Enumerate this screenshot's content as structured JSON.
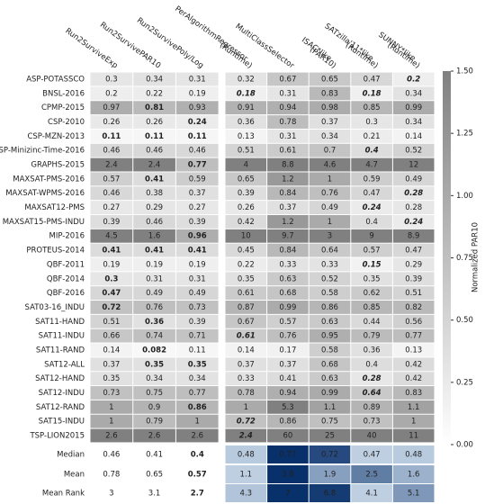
{
  "chart_data": {
    "type": "heatmap",
    "colorbar_label": "Normalized PAR10",
    "clim": [
      0,
      1.5
    ],
    "colorbar_ticks": [
      {
        "value": 0,
        "label": "0.00"
      },
      {
        "value": 0.25,
        "label": "0.25"
      },
      {
        "value": 0.5,
        "label": "0.50"
      },
      {
        "value": 0.75,
        "label": "0.75"
      },
      {
        "value": 1,
        "label": "1.00"
      },
      {
        "value": 1.25,
        "label": "1.25"
      },
      {
        "value": 1.5,
        "label": "1.50"
      }
    ],
    "columns": [
      [
        "Run2SurviveExp"
      ],
      [
        "Run2SurvivePAR10"
      ],
      [
        "Run2SurvivePoly/Log"
      ],
      [
        "PerAlgorithmRegressor",
        "(Runtime)"
      ],
      [
        "MultiClassSelector"
      ],
      [
        "ISAC*like",
        "(PAR10)"
      ],
      [
        "SATzilla'11*like",
        "(Runtime)"
      ],
      [
        "SUNNY*like",
        "(Runtime)"
      ]
    ],
    "rows": [
      {
        "name": "ASP-POTASSCO",
        "values": [
          0.3,
          0.34,
          0.31,
          0.32,
          0.67,
          0.65,
          0.47,
          0.2
        ],
        "bold": [
          7
        ]
      },
      {
        "name": "BNSL-2016",
        "values": [
          0.2,
          0.22,
          0.19,
          0.18,
          0.31,
          0.83,
          0.18,
          0.34
        ],
        "bold": [
          3,
          6
        ]
      },
      {
        "name": "CPMP-2015",
        "values": [
          0.97,
          0.81,
          0.93,
          0.91,
          0.94,
          0.98,
          0.85,
          0.99
        ],
        "bold": [
          1
        ]
      },
      {
        "name": "CSP-2010",
        "values": [
          0.26,
          0.26,
          0.24,
          0.36,
          0.78,
          0.37,
          0.3,
          0.34
        ],
        "bold": [
          2
        ]
      },
      {
        "name": "CSP-MZN-2013",
        "values": [
          0.11,
          0.11,
          0.11,
          0.13,
          0.31,
          0.34,
          0.21,
          0.14
        ],
        "bold": [
          0,
          1,
          2
        ]
      },
      {
        "name": "CSP-Minizinc-Time-2016",
        "values": [
          0.46,
          0.46,
          0.46,
          0.51,
          0.61,
          0.7,
          0.4,
          0.52
        ],
        "bold": [
          6
        ]
      },
      {
        "name": "GRAPHS-2015",
        "values": [
          2.4,
          2.4,
          0.77,
          4,
          8.8,
          4.6,
          4.7,
          12
        ],
        "bold": [
          2
        ]
      },
      {
        "name": "MAXSAT-PMS-2016",
        "values": [
          0.57,
          0.41,
          0.59,
          0.65,
          1.2,
          1,
          0.59,
          0.49
        ],
        "bold": [
          1
        ]
      },
      {
        "name": "MAXSAT-WPMS-2016",
        "values": [
          0.46,
          0.38,
          0.37,
          0.39,
          0.84,
          0.76,
          0.47,
          0.28
        ],
        "bold": [
          7
        ]
      },
      {
        "name": "MAXSAT12-PMS",
        "values": [
          0.27,
          0.29,
          0.27,
          0.26,
          0.37,
          0.49,
          0.24,
          0.28
        ],
        "bold": [
          6
        ]
      },
      {
        "name": "MAXSAT15-PMS-INDU",
        "values": [
          0.39,
          0.46,
          0.39,
          0.42,
          1.2,
          1,
          0.4,
          0.24
        ],
        "bold": [
          7
        ]
      },
      {
        "name": "MIP-2016",
        "values": [
          4.5,
          1.6,
          0.96,
          10,
          9.7,
          3,
          9,
          8.9
        ],
        "bold": [
          2
        ]
      },
      {
        "name": "PROTEUS-2014",
        "values": [
          0.41,
          0.41,
          0.41,
          0.45,
          0.84,
          0.64,
          0.57,
          0.47
        ],
        "bold": [
          0,
          1,
          2
        ]
      },
      {
        "name": "QBF-2011",
        "values": [
          0.19,
          0.19,
          0.19,
          0.22,
          0.33,
          0.33,
          0.15,
          0.29
        ],
        "bold": [
          6
        ]
      },
      {
        "name": "QBF-2014",
        "values": [
          0.3,
          0.31,
          0.31,
          0.35,
          0.63,
          0.52,
          0.35,
          0.39
        ],
        "bold": [
          0
        ]
      },
      {
        "name": "QBF-2016",
        "values": [
          0.47,
          0.49,
          0.49,
          0.61,
          0.68,
          0.58,
          0.62,
          0.51
        ],
        "bold": [
          0
        ]
      },
      {
        "name": "SAT03-16_INDU",
        "values": [
          0.72,
          0.76,
          0.73,
          0.87,
          0.99,
          0.86,
          0.85,
          0.82
        ],
        "bold": [
          0
        ]
      },
      {
        "name": "SAT11-HAND",
        "values": [
          0.51,
          0.36,
          0.39,
          0.67,
          0.57,
          0.63,
          0.44,
          0.56
        ],
        "bold": [
          1
        ]
      },
      {
        "name": "SAT11-INDU",
        "values": [
          0.66,
          0.74,
          0.71,
          0.61,
          0.76,
          0.95,
          0.79,
          0.77
        ],
        "bold": [
          3
        ]
      },
      {
        "name": "SAT11-RAND",
        "values": [
          0.14,
          0.082,
          0.11,
          0.14,
          0.17,
          0.58,
          0.36,
          0.13
        ],
        "bold": [
          1
        ]
      },
      {
        "name": "SAT12-ALL",
        "values": [
          0.37,
          0.35,
          0.35,
          0.37,
          0.37,
          0.68,
          0.4,
          0.42
        ],
        "bold": [
          1,
          2
        ]
      },
      {
        "name": "SAT12-HAND",
        "values": [
          0.35,
          0.34,
          0.34,
          0.33,
          0.41,
          0.63,
          0.28,
          0.42
        ],
        "bold": [
          6
        ]
      },
      {
        "name": "SAT12-INDU",
        "values": [
          0.73,
          0.75,
          0.77,
          0.78,
          0.94,
          0.99,
          0.64,
          0.83
        ],
        "bold": [
          6
        ]
      },
      {
        "name": "SAT12-RAND",
        "values": [
          1,
          0.9,
          0.86,
          1,
          5.3,
          1.1,
          0.89,
          1.1
        ],
        "bold": [
          2
        ]
      },
      {
        "name": "SAT15-INDU",
        "values": [
          1,
          0.79,
          1,
          0.72,
          0.86,
          0.75,
          0.73,
          1
        ],
        "bold": [
          3
        ]
      },
      {
        "name": "TSP-LION2015",
        "values": [
          2.6,
          2.6,
          2.6,
          2.4,
          60,
          25,
          40,
          11
        ],
        "bold": [
          3
        ]
      }
    ],
    "summary": [
      {
        "name": "Median",
        "values": [
          0.46,
          0.41,
          0.4,
          0.48,
          0.77,
          0.72,
          0.47,
          0.48
        ],
        "bold": [
          2
        ]
      },
      {
        "name": "Mean",
        "values": [
          0.78,
          0.65,
          0.57,
          1.1,
          3.8,
          1.9,
          2.5,
          1.6
        ],
        "bold": [
          2
        ]
      },
      {
        "name": "Mean Rank",
        "values": [
          3,
          3.1,
          2.7,
          4.3,
          7,
          6.8,
          4.1,
          5.1
        ],
        "bold": [
          2
        ]
      }
    ]
  }
}
